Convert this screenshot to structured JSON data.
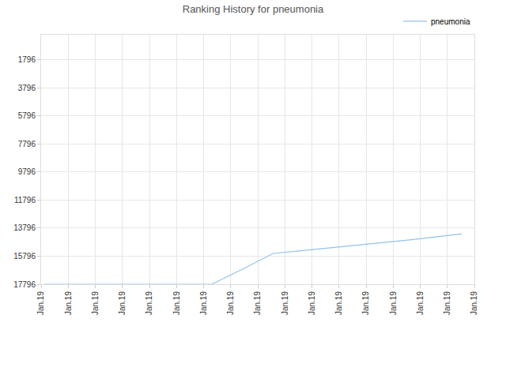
{
  "chart_data": {
    "type": "line",
    "title": "Ranking History for pneumonia",
    "series": [
      {
        "name": "pneumonia",
        "color": "#92c2ec",
        "x": [
          0.1,
          6.3,
          7.4,
          8.57,
          9.5,
          11,
          12.5,
          14,
          15.53
        ],
        "values": [
          17796,
          17796,
          16750,
          15600,
          15420,
          15150,
          14850,
          14550,
          14200
        ]
      }
    ],
    "xlim": [
      0,
      16
    ],
    "xticks": [
      {
        "value": 0,
        "label": "Jan.19"
      },
      {
        "value": 1,
        "label": "Jan.19"
      },
      {
        "value": 2,
        "label": "Jan.19"
      },
      {
        "value": 3,
        "label": "Jan.19"
      },
      {
        "value": 4,
        "label": "Jan.19"
      },
      {
        "value": 5,
        "label": "Jan.19"
      },
      {
        "value": 6,
        "label": "Jan.19"
      },
      {
        "value": 7,
        "label": "Jan.19"
      },
      {
        "value": 8,
        "label": "Jan.19"
      },
      {
        "value": 9,
        "label": "Jan.19"
      },
      {
        "value": 10,
        "label": "Jan.19"
      },
      {
        "value": 11,
        "label": "Jan.19"
      },
      {
        "value": 12,
        "label": "Jan.19"
      },
      {
        "value": 13,
        "label": "Jan.19"
      },
      {
        "value": 14,
        "label": "Jan.19"
      },
      {
        "value": 15,
        "label": "Jan.19"
      },
      {
        "value": 16,
        "label": "Jan.19"
      }
    ],
    "ylim": [
      17796,
      0
    ],
    "yticks": [
      1796,
      3796,
      5796,
      7796,
      9796,
      11796,
      13796,
      15796,
      17796
    ],
    "grid": true,
    "legend": "top right"
  }
}
